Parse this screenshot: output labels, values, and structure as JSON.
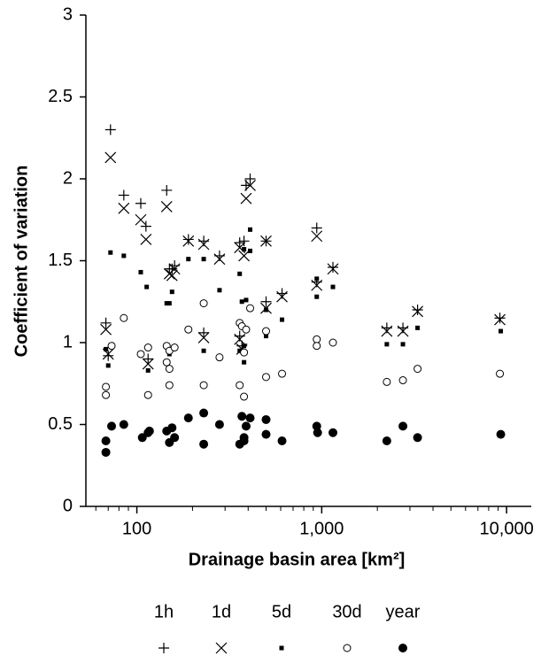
{
  "chart_data": {
    "type": "scatter",
    "y_label": "Coefficient of variation",
    "x_label": "Drainage basin area [km²]",
    "x_scale": "log",
    "xlim": [
      53,
      13600
    ],
    "xticks": [
      100,
      {
        "value": 1000,
        "label": "1,000"
      },
      {
        "value": 10000,
        "label": "10,000"
      }
    ],
    "x_minor_ticks": [
      60,
      70,
      80,
      90,
      200,
      300,
      400,
      500,
      600,
      700,
      800,
      900,
      2000,
      3000,
      4000,
      5000,
      6000,
      7000,
      8000,
      9000
    ],
    "ylim": [
      0,
      3
    ],
    "yticks": [
      0,
      0.5,
      1,
      1.5,
      2,
      2.5,
      3
    ],
    "legend": "bottom",
    "series": [
      {
        "name": "1h",
        "color": "#000000",
        "marker": "plus",
        "x": [
          72,
          85,
          105,
          112,
          145,
          410,
          390,
          940,
          190,
          230,
          280,
          360,
          380,
          500,
          150,
          155,
          160,
          610,
          500,
          940,
          1150,
          2250,
          68,
          115,
          230,
          360,
          370,
          2750,
          3300,
          9200,
          70
        ],
        "values": [
          2.3,
          1.9,
          1.85,
          1.71,
          1.93,
          2.0,
          1.96,
          1.7,
          1.63,
          1.62,
          1.53,
          1.61,
          1.62,
          1.62,
          1.45,
          1.45,
          1.47,
          1.3,
          1.25,
          1.37,
          1.46,
          1.09,
          1.12,
          0.9,
          1.06,
          1.04,
          0.98,
          1.09,
          1.2,
          1.15,
          0.92
        ]
      },
      {
        "name": "1d",
        "color": "#000000",
        "marker": "x",
        "x": [
          72,
          85,
          105,
          112,
          145,
          410,
          390,
          940,
          190,
          230,
          280,
          360,
          380,
          500,
          150,
          155,
          160,
          610,
          500,
          940,
          1150,
          2250,
          68,
          115,
          230,
          360,
          370,
          2750,
          3300,
          9200,
          70
        ],
        "values": [
          2.13,
          1.82,
          1.75,
          1.63,
          1.83,
          1.96,
          1.88,
          1.65,
          1.62,
          1.6,
          1.51,
          1.58,
          1.53,
          1.62,
          1.42,
          1.41,
          1.45,
          1.28,
          1.21,
          1.35,
          1.45,
          1.07,
          1.08,
          0.87,
          1.03,
          1.02,
          0.96,
          1.07,
          1.19,
          1.14,
          0.93
        ]
      },
      {
        "name": "5d",
        "color": "#000000",
        "marker": "square",
        "x": [
          72,
          85,
          105,
          113,
          145,
          150,
          155,
          190,
          230,
          280,
          230,
          360,
          370,
          380,
          410,
          410,
          390,
          500,
          500,
          940,
          940,
          1150,
          610,
          68,
          70,
          115,
          145,
          150,
          360,
          380,
          380,
          2250,
          2750,
          3300,
          9300
        ],
        "values": [
          1.55,
          1.53,
          1.43,
          1.34,
          1.24,
          1.24,
          1.31,
          1.51,
          1.51,
          1.32,
          0.95,
          1.42,
          1.25,
          1.57,
          1.69,
          1.56,
          1.26,
          1.2,
          1.04,
          1.39,
          1.28,
          1.34,
          1.14,
          0.96,
          0.86,
          0.83,
          0.88,
          0.93,
          0.95,
          0.88,
          0.98,
          0.99,
          0.99,
          1.09,
          1.07
        ]
      },
      {
        "name": "30d",
        "color": "#000000",
        "marker": "circle-open",
        "x": [
          68,
          68,
          73,
          85,
          105,
          115,
          115,
          145,
          145,
          150,
          150,
          150,
          160,
          190,
          230,
          230,
          280,
          360,
          370,
          380,
          380,
          390,
          410,
          360,
          500,
          500,
          610,
          940,
          940,
          1150,
          2250,
          2750,
          3300,
          9200
        ],
        "values": [
          0.73,
          0.68,
          0.98,
          1.15,
          0.93,
          0.97,
          0.68,
          0.98,
          0.88,
          0.95,
          0.84,
          0.74,
          0.97,
          1.08,
          1.24,
          0.74,
          0.91,
          1.12,
          1.1,
          0.94,
          0.67,
          1.08,
          1.21,
          0.74,
          1.07,
          0.79,
          0.81,
          1.02,
          0.98,
          1.0,
          0.76,
          0.77,
          0.84,
          0.81
        ]
      },
      {
        "name": "year",
        "color": "#000000",
        "marker": "circle",
        "x": [
          68,
          68,
          73,
          85,
          107,
          115,
          117,
          145,
          150,
          155,
          160,
          190,
          230,
          230,
          280,
          360,
          370,
          380,
          380,
          390,
          410,
          500,
          500,
          610,
          940,
          950,
          1150,
          2250,
          2750,
          3300,
          9300
        ],
        "values": [
          0.33,
          0.4,
          0.49,
          0.5,
          0.42,
          0.45,
          0.46,
          0.46,
          0.39,
          0.48,
          0.42,
          0.54,
          0.57,
          0.38,
          0.5,
          0.38,
          0.55,
          0.42,
          0.4,
          0.49,
          0.54,
          0.53,
          0.44,
          0.4,
          0.49,
          0.45,
          0.45,
          0.4,
          0.49,
          0.42,
          0.44
        ]
      }
    ]
  }
}
